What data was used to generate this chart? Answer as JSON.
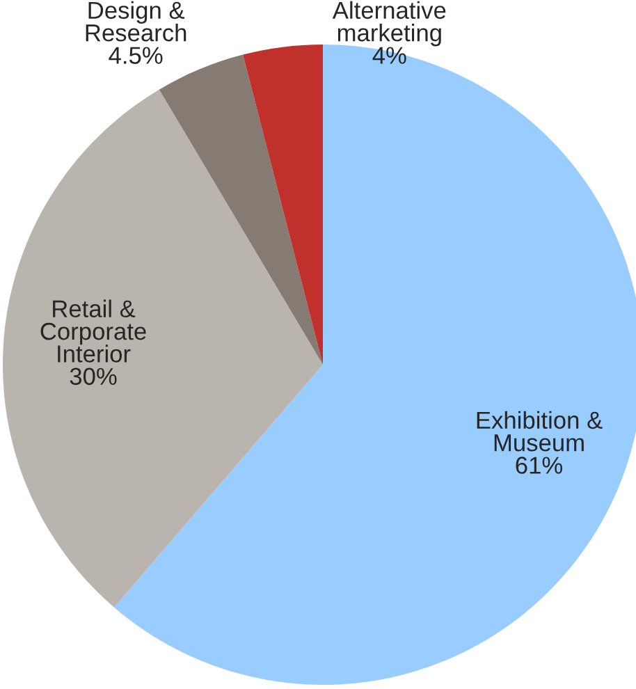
{
  "chart_data": {
    "type": "pie",
    "categories": [
      "Exhibition &\nMuseum",
      "Retail &\nCorporate\nInterior",
      "Design &\nResearch",
      "Alternative\nmarketing"
    ],
    "values": [
      61,
      30,
      4.5,
      4
    ],
    "value_labels": [
      "61%",
      "30%",
      "4.5%",
      "4%"
    ],
    "colors": [
      "#99ccff",
      "#bab4ae",
      "#857b73",
      "#c0312d"
    ],
    "legend": false
  }
}
